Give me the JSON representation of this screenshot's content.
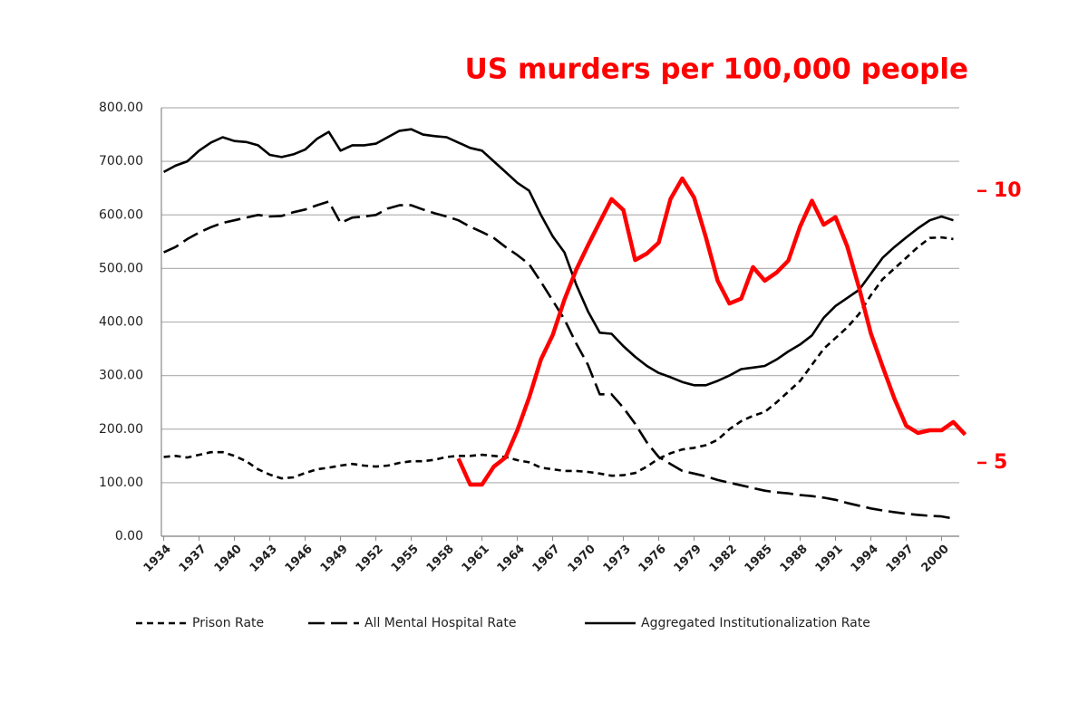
{
  "chart_data": {
    "type": "line",
    "title": "US murders per 100,000 people",
    "x": [
      1934,
      1935,
      1936,
      1937,
      1938,
      1939,
      1940,
      1941,
      1942,
      1943,
      1944,
      1945,
      1946,
      1947,
      1948,
      1949,
      1950,
      1951,
      1952,
      1953,
      1954,
      1955,
      1956,
      1957,
      1958,
      1959,
      1960,
      1961,
      1962,
      1963,
      1964,
      1965,
      1966,
      1967,
      1968,
      1969,
      1970,
      1971,
      1972,
      1973,
      1974,
      1975,
      1976,
      1977,
      1978,
      1979,
      1980,
      1981,
      1982,
      1983,
      1984,
      1985,
      1986,
      1987,
      1988,
      1989,
      1990,
      1991,
      1992,
      1993,
      1994,
      1995,
      1996,
      1997,
      1998,
      1999,
      2000,
      2001,
      2002
    ],
    "series": [
      {
        "name": "Prison Rate",
        "color": "#000000",
        "dash": "short",
        "values": [
          148,
          150,
          147,
          152,
          157,
          157,
          150,
          140,
          125,
          115,
          108,
          110,
          118,
          125,
          128,
          132,
          135,
          132,
          130,
          132,
          137,
          140,
          140,
          143,
          148,
          150,
          150,
          152,
          150,
          148,
          142,
          138,
          128,
          125,
          122,
          122,
          120,
          117,
          113,
          114,
          118,
          130,
          145,
          155,
          162,
          165,
          170,
          180,
          200,
          215,
          225,
          232,
          250,
          270,
          290,
          320,
          350,
          370,
          390,
          415,
          450,
          480,
          500,
          520,
          540,
          557,
          558,
          555,
          null
        ]
      },
      {
        "name": "All Mental Hospital Rate",
        "color": "#000000",
        "dash": "long",
        "values": [
          530,
          540,
          555,
          567,
          577,
          585,
          590,
          595,
          600,
          597,
          598,
          605,
          610,
          618,
          625,
          585,
          595,
          597,
          600,
          612,
          618,
          618,
          610,
          603,
          597,
          590,
          578,
          568,
          557,
          540,
          525,
          508,
          475,
          440,
          405,
          360,
          320,
          265,
          265,
          240,
          210,
          175,
          148,
          135,
          122,
          117,
          112,
          105,
          100,
          95,
          90,
          85,
          82,
          80,
          77,
          75,
          72,
          68,
          62,
          57,
          52,
          48,
          45,
          42,
          40,
          38,
          37,
          33,
          null
        ]
      },
      {
        "name": "Aggregated Institutionalization Rate",
        "color": "#000000",
        "dash": "solid",
        "values": [
          680,
          692,
          700,
          720,
          735,
          745,
          738,
          736,
          730,
          712,
          708,
          713,
          722,
          742,
          755,
          720,
          730,
          730,
          733,
          745,
          757,
          760,
          750,
          747,
          745,
          735,
          725,
          720,
          700,
          680,
          660,
          645,
          600,
          560,
          530,
          470,
          420,
          380,
          378,
          355,
          335,
          318,
          305,
          297,
          288,
          282,
          282,
          290,
          300,
          312,
          315,
          318,
          330,
          345,
          358,
          375,
          408,
          430,
          445,
          460,
          490,
          520,
          540,
          558,
          575,
          590,
          597,
          590,
          null
        ]
      },
      {
        "color": "#ff0000",
        "dash": "solid",
        "axis": "y2",
        "values": [
          null,
          null,
          null,
          null,
          null,
          null,
          null,
          null,
          null,
          null,
          null,
          null,
          null,
          null,
          null,
          null,
          null,
          null,
          null,
          null,
          null,
          null,
          null,
          null,
          null,
          5.08,
          4.6,
          4.6,
          4.93,
          5.1,
          5.6,
          6.2,
          6.9,
          7.35,
          8.0,
          8.55,
          9.0,
          9.43,
          9.85,
          9.65,
          8.73,
          8.85,
          9.05,
          9.85,
          10.23,
          9.88,
          9.15,
          8.35,
          7.93,
          8.02,
          8.6,
          8.35,
          8.5,
          8.72,
          9.35,
          9.82,
          9.38,
          9.52,
          8.98,
          8.22,
          7.38,
          6.77,
          6.18,
          5.68,
          5.55,
          5.6,
          5.6,
          5.75,
          5.52
        ]
      }
    ],
    "xlim": [
      1933.8,
      2001.5
    ],
    "xticks": [
      1934,
      1937,
      1940,
      1943,
      1946,
      1949,
      1952,
      1955,
      1958,
      1961,
      1964,
      1967,
      1970,
      1973,
      1976,
      1979,
      1982,
      1985,
      1988,
      1991,
      1994,
      1997,
      2000
    ],
    "ylim": [
      0,
      800
    ],
    "yticks": [
      {
        "value": 0,
        "label": "0.00"
      },
      {
        "value": 100,
        "label": "100.00"
      },
      {
        "value": 200,
        "label": "200.00"
      },
      {
        "value": 300,
        "label": "300.00"
      },
      {
        "value": 400,
        "label": "400.00"
      },
      {
        "value": 500,
        "label": "500.00"
      },
      {
        "value": 600,
        "label": "600.00"
      },
      {
        "value": 700,
        "label": "700.00"
      },
      {
        "value": 800,
        "label": "800.00"
      }
    ],
    "y2lim": [
      3.65,
      11.53
    ],
    "y2ticks": [
      5,
      10
    ],
    "y2color": "#ff0000",
    "grid": true,
    "legend": "bottom"
  }
}
